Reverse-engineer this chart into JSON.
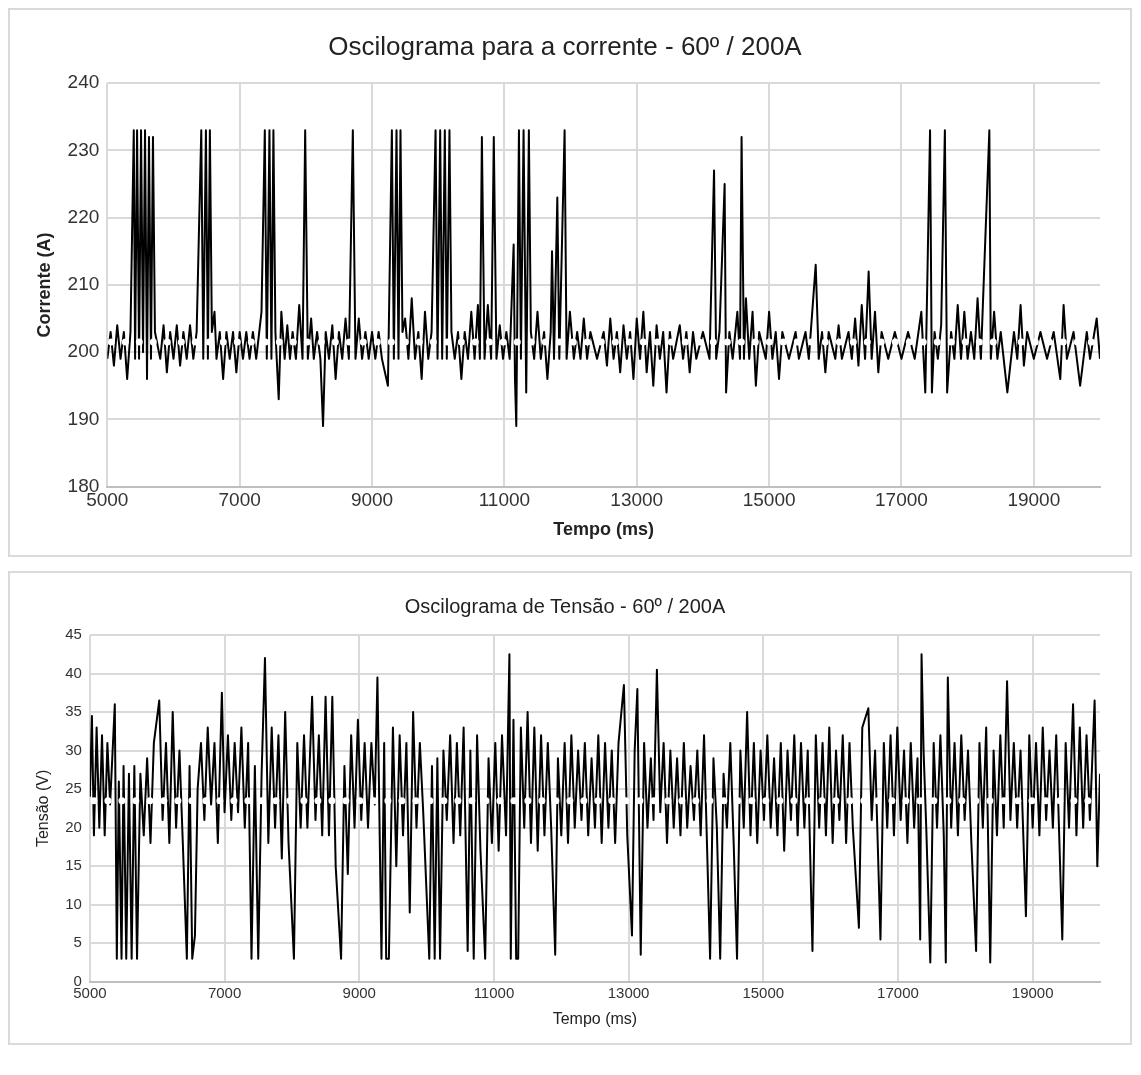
{
  "chart_data": [
    {
      "type": "line",
      "title": "Oscilograma para a corrente - 60º / 200A",
      "xlabel": "Tempo (ms)",
      "ylabel": "Corrente (A)",
      "xlim": [
        5000,
        20000
      ],
      "xticks": [
        5000,
        7000,
        9000,
        11000,
        13000,
        15000,
        17000,
        19000
      ],
      "ylim": [
        180,
        240
      ],
      "yticks": [
        180,
        190,
        200,
        210,
        220,
        230,
        240
      ],
      "grid": true,
      "marker": "none",
      "line_style": "solid",
      "ref_lines": [
        {
          "axis": "y",
          "value": 201.5,
          "color": "#ffffff",
          "line_style": "dotted"
        }
      ],
      "x": [
        5000,
        5050,
        5100,
        5150,
        5200,
        5250,
        5300,
        5350,
        5400,
        5420,
        5450,
        5480,
        5510,
        5540,
        5570,
        5600,
        5630,
        5660,
        5690,
        5720,
        5800,
        5850,
        5900,
        5950,
        6000,
        6050,
        6100,
        6150,
        6200,
        6250,
        6300,
        6350,
        6420,
        6450,
        6490,
        6520,
        6550,
        6580,
        6620,
        6650,
        6700,
        6750,
        6800,
        6850,
        6900,
        6950,
        7000,
        7050,
        7100,
        7150,
        7200,
        7250,
        7330,
        7380,
        7410,
        7450,
        7480,
        7510,
        7540,
        7590,
        7630,
        7680,
        7720,
        7760,
        7800,
        7850,
        7900,
        7950,
        7990,
        8030,
        8080,
        8120,
        8170,
        8220,
        8260,
        8300,
        8350,
        8400,
        8450,
        8500,
        8550,
        8600,
        8650,
        8710,
        8750,
        8800,
        8850,
        8900,
        8950,
        9000,
        9050,
        9100,
        9150,
        9240,
        9300,
        9330,
        9370,
        9400,
        9430,
        9460,
        9500,
        9550,
        9600,
        9650,
        9700,
        9750,
        9800,
        9850,
        9900,
        9960,
        9990,
        10030,
        10060,
        10100,
        10130,
        10170,
        10200,
        10250,
        10300,
        10350,
        10400,
        10450,
        10500,
        10550,
        10600,
        10630,
        10660,
        10700,
        10750,
        10800,
        10840,
        10880,
        10930,
        10980,
        11030,
        11080,
        11140,
        11160,
        11180,
        11220,
        11250,
        11290,
        11330,
        11370,
        11400,
        11450,
        11500,
        11550,
        11600,
        11650,
        11700,
        11720,
        11750,
        11800,
        11830,
        11910,
        11940,
        11990,
        12050,
        12100,
        12150,
        12200,
        12250,
        12300,
        12400,
        12500,
        12550,
        12600,
        12650,
        12700,
        12750,
        12800,
        12850,
        12900,
        12950,
        13000,
        13050,
        13100,
        13150,
        13200,
        13250,
        13300,
        13350,
        13400,
        13450,
        13500,
        13550,
        13650,
        13700,
        13750,
        13800,
        13850,
        13900,
        14000,
        14100,
        14168,
        14200,
        14250,
        14328,
        14350,
        14400,
        14450,
        14520,
        14560,
        14584,
        14620,
        14650,
        14700,
        14750,
        14800,
        14850,
        14950,
        15000,
        15050,
        15100,
        15150,
        15200,
        15300,
        15400,
        15450,
        15550,
        15600,
        15704,
        15750,
        15800,
        15850,
        15900,
        16000,
        16050,
        16100,
        16200,
        16250,
        16300,
        16350,
        16400,
        16450,
        16504,
        16550,
        16600,
        16650,
        16700,
        16800,
        16900,
        17000,
        17100,
        17200,
        17300,
        17360,
        17432,
        17460,
        17500,
        17550,
        17600,
        17656,
        17690,
        17750,
        17800,
        17850,
        17900,
        17950,
        18000,
        18050,
        18100,
        18150,
        18200,
        18328,
        18350,
        18400,
        18450,
        18500,
        18600,
        18700,
        18750,
        18800,
        18850,
        18900,
        19000,
        19100,
        19200,
        19300,
        19400,
        19450,
        19500,
        19600,
        19700,
        19800,
        19850,
        19950,
        20000
      ],
      "series": [
        {
          "color": "#000000",
          "values": [
            199,
            203,
            198,
            204,
            199,
            203,
            196,
            203,
            233,
            199,
            233,
            199,
            233,
            200,
            233,
            196,
            232,
            199,
            232,
            203,
            199,
            204,
            197,
            203,
            199,
            204,
            198,
            203,
            199,
            204,
            199,
            203,
            233,
            199,
            233,
            199,
            233,
            203,
            206,
            199,
            203,
            196,
            203,
            199,
            203,
            197,
            203,
            199,
            203,
            199,
            203,
            199,
            206,
            233,
            199,
            233,
            199,
            233,
            203,
            193,
            206,
            199,
            204,
            199,
            203,
            199,
            207,
            199,
            233,
            199,
            205,
            199,
            203,
            199,
            189,
            203,
            199,
            204,
            196,
            203,
            199,
            205,
            199,
            233,
            199,
            205,
            199,
            203,
            199,
            203,
            199,
            203,
            199,
            195,
            233,
            199,
            233,
            199,
            233,
            203,
            205,
            199,
            208,
            199,
            203,
            196,
            206,
            199,
            203,
            233,
            199,
            233,
            199,
            233,
            199,
            233,
            203,
            199,
            203,
            196,
            203,
            199,
            206,
            199,
            207,
            199,
            232,
            199,
            207,
            199,
            232,
            199,
            204,
            199,
            203,
            199,
            216,
            196,
            189,
            233,
            199,
            233,
            194,
            233,
            203,
            199,
            206,
            199,
            203,
            196,
            203,
            215,
            199,
            223,
            199,
            233,
            199,
            206,
            199,
            203,
            199,
            205,
            199,
            203,
            199,
            203,
            198,
            205,
            199,
            203,
            197,
            204,
            199,
            203,
            196,
            205,
            199,
            206,
            197,
            203,
            195,
            204,
            199,
            203,
            194,
            203,
            199,
            204,
            199,
            203,
            197,
            203,
            199,
            203,
            199,
            227,
            199,
            203,
            225,
            194,
            203,
            199,
            206,
            199,
            232,
            199,
            208,
            199,
            206,
            195,
            203,
            199,
            206,
            199,
            203,
            196,
            203,
            199,
            203,
            199,
            203,
            199,
            213,
            199,
            203,
            197,
            203,
            199,
            204,
            199,
            203,
            199,
            205,
            198,
            207,
            199,
            212,
            199,
            206,
            197,
            203,
            199,
            203,
            199,
            203,
            199,
            206,
            194,
            233,
            194,
            203,
            199,
            204,
            233,
            194,
            203,
            199,
            207,
            199,
            206,
            199,
            203,
            199,
            208,
            199,
            233,
            199,
            206,
            199,
            203,
            194,
            203,
            199,
            207,
            198,
            203,
            199,
            203,
            199,
            203,
            196,
            207,
            199,
            203,
            195,
            203,
            199,
            205,
            199
          ]
        }
      ]
    },
    {
      "type": "line",
      "title": "Oscilograma de Tensão - 60º / 200A",
      "xlabel": "Tempo (ms)",
      "ylabel": "Tensão (V)",
      "xlim": [
        5000,
        20000
      ],
      "xticks": [
        5000,
        7000,
        9000,
        11000,
        13000,
        15000,
        17000,
        19000
      ],
      "ylim": [
        0,
        45
      ],
      "yticks": [
        0,
        5,
        10,
        15,
        20,
        25,
        30,
        35,
        40,
        45
      ],
      "grid": true,
      "marker": "none",
      "line_style": "solid",
      "ref_lines": [
        {
          "axis": "y",
          "value": 23.5,
          "color": "#ffffff",
          "line_style": "dotted"
        }
      ],
      "x": [
        5000,
        5030,
        5060,
        5100,
        5140,
        5180,
        5220,
        5260,
        5300,
        5370,
        5400,
        5430,
        5470,
        5500,
        5540,
        5580,
        5620,
        5660,
        5700,
        5750,
        5800,
        5850,
        5900,
        5950,
        6030,
        6080,
        6130,
        6180,
        6230,
        6280,
        6330,
        6380,
        6440,
        6480,
        6520,
        6560,
        6600,
        6650,
        6700,
        6750,
        6800,
        6850,
        6900,
        6960,
        7000,
        7050,
        7100,
        7150,
        7200,
        7250,
        7300,
        7350,
        7400,
        7450,
        7500,
        7550,
        7600,
        7650,
        7700,
        7750,
        7800,
        7850,
        7900,
        7950,
        8030,
        8080,
        8130,
        8180,
        8230,
        8300,
        8350,
        8400,
        8450,
        8500,
        8550,
        8600,
        8650,
        8730,
        8780,
        8830,
        8880,
        8930,
        8980,
        9030,
        9080,
        9130,
        9180,
        9230,
        9270,
        9330,
        9370,
        9400,
        9440,
        9500,
        9550,
        9600,
        9650,
        9700,
        9750,
        9800,
        9850,
        9900,
        9950,
        10040,
        10080,
        10120,
        10160,
        10200,
        10250,
        10300,
        10350,
        10400,
        10450,
        10500,
        10550,
        10610,
        10650,
        10700,
        10750,
        10800,
        10870,
        10920,
        10970,
        11020,
        11070,
        11120,
        11180,
        11230,
        11250,
        11290,
        11330,
        11360,
        11400,
        11450,
        11500,
        11550,
        11600,
        11650,
        11700,
        11750,
        11800,
        11850,
        11910,
        11950,
        12000,
        12050,
        12100,
        12150,
        12200,
        12250,
        12300,
        12350,
        12400,
        12450,
        12500,
        12550,
        12600,
        12650,
        12700,
        12750,
        12800,
        12850,
        12930,
        12980,
        13050,
        13090,
        13130,
        13180,
        13230,
        13280,
        13330,
        13370,
        13420,
        13470,
        13520,
        13570,
        13620,
        13670,
        13720,
        13770,
        13820,
        13870,
        13920,
        13970,
        14020,
        14070,
        14120,
        14210,
        14260,
        14310,
        14360,
        14410,
        14460,
        14510,
        14560,
        14610,
        14660,
        14710,
        14760,
        14810,
        14860,
        14910,
        14960,
        15010,
        15060,
        15110,
        15160,
        15210,
        15260,
        15310,
        15360,
        15410,
        15460,
        15510,
        15560,
        15610,
        15660,
        15730,
        15780,
        15830,
        15880,
        15930,
        15980,
        16030,
        16080,
        16130,
        16180,
        16230,
        16280,
        16330,
        16420,
        16470,
        16560,
        16610,
        16660,
        16740,
        16790,
        16840,
        16890,
        16940,
        16990,
        17040,
        17090,
        17140,
        17190,
        17240,
        17290,
        17330,
        17350,
        17380,
        17420,
        17480,
        17530,
        17580,
        17630,
        17680,
        17710,
        17740,
        17790,
        17840,
        17890,
        17940,
        17990,
        18040,
        18090,
        18160,
        18210,
        18260,
        18310,
        18370,
        18420,
        18470,
        18520,
        18570,
        18620,
        18670,
        18720,
        18770,
        18820,
        18900,
        18950,
        19000,
        19050,
        19100,
        19150,
        19200,
        19250,
        19300,
        19350,
        19440,
        19490,
        19540,
        19600,
        19650,
        19700,
        19750,
        19800,
        19850,
        19920,
        19960,
        20000
      ],
      "series": [
        {
          "color": "#000000",
          "values": [
            24,
            34.5,
            19,
            33,
            20,
            32,
            19,
            31,
            23,
            36,
            3,
            26,
            3,
            28,
            3,
            27,
            3,
            28,
            3,
            27,
            19,
            29,
            18,
            31,
            36.5,
            21,
            31,
            18,
            35,
            20,
            30,
            18,
            3,
            28,
            3,
            6,
            25,
            31,
            21,
            33,
            23,
            31,
            18,
            37.5,
            22,
            32,
            21,
            31,
            22,
            33,
            20,
            31,
            3,
            28,
            3,
            27,
            42,
            18,
            33,
            20,
            32,
            16,
            35,
            18,
            3,
            31,
            20,
            32,
            20,
            37,
            21,
            32,
            19,
            37,
            19,
            37,
            15,
            3,
            28,
            14,
            32,
            20,
            34,
            21,
            31,
            20,
            31,
            23,
            39.5,
            3,
            31,
            3,
            3,
            33,
            15,
            32,
            19,
            31,
            9,
            35,
            20,
            31,
            22,
            3,
            28,
            3,
            29,
            3,
            30,
            21,
            32,
            18,
            31,
            19,
            33,
            4,
            30,
            3,
            32,
            17,
            3,
            29,
            18,
            31,
            17,
            32,
            19,
            42.5,
            3,
            34,
            3,
            3,
            33,
            20,
            35,
            18,
            33,
            17,
            32,
            19,
            31,
            20,
            3.5,
            29,
            19,
            31,
            18,
            32,
            20,
            30,
            21,
            31,
            19,
            29,
            20,
            32,
            18,
            31,
            20,
            30,
            18,
            31,
            38.5,
            19,
            6,
            30,
            38,
            3.5,
            31,
            20,
            29,
            21,
            40.5,
            22,
            31,
            18,
            30,
            20,
            29,
            19,
            31,
            20,
            28,
            21,
            30,
            19,
            32,
            3,
            29,
            20,
            3,
            27,
            20,
            31,
            18,
            3,
            30,
            20,
            35,
            19,
            31,
            18,
            30,
            21,
            32,
            20,
            29,
            19,
            31,
            17,
            30,
            21,
            32,
            19,
            31,
            20,
            30,
            4,
            32,
            20,
            31,
            19,
            33,
            18,
            30,
            21,
            32,
            18,
            31,
            20,
            7,
            33,
            35.5,
            21,
            30,
            5.5,
            31,
            20,
            32,
            19,
            33,
            21,
            30,
            18,
            31,
            20,
            29,
            5.5,
            42.5,
            30,
            20,
            2.5,
            31,
            20,
            32,
            19,
            2.5,
            39.5,
            20,
            31,
            19,
            32,
            21,
            30,
            18,
            4,
            31,
            20,
            33,
            2.5,
            30,
            19,
            32,
            20,
            39,
            21,
            31,
            20,
            30,
            8.5,
            32,
            20,
            31,
            19,
            33,
            21,
            30,
            20,
            32,
            5.5,
            31,
            20,
            36,
            19,
            33,
            20,
            32,
            21,
            36.5,
            15,
            27
          ]
        }
      ]
    }
  ]
}
